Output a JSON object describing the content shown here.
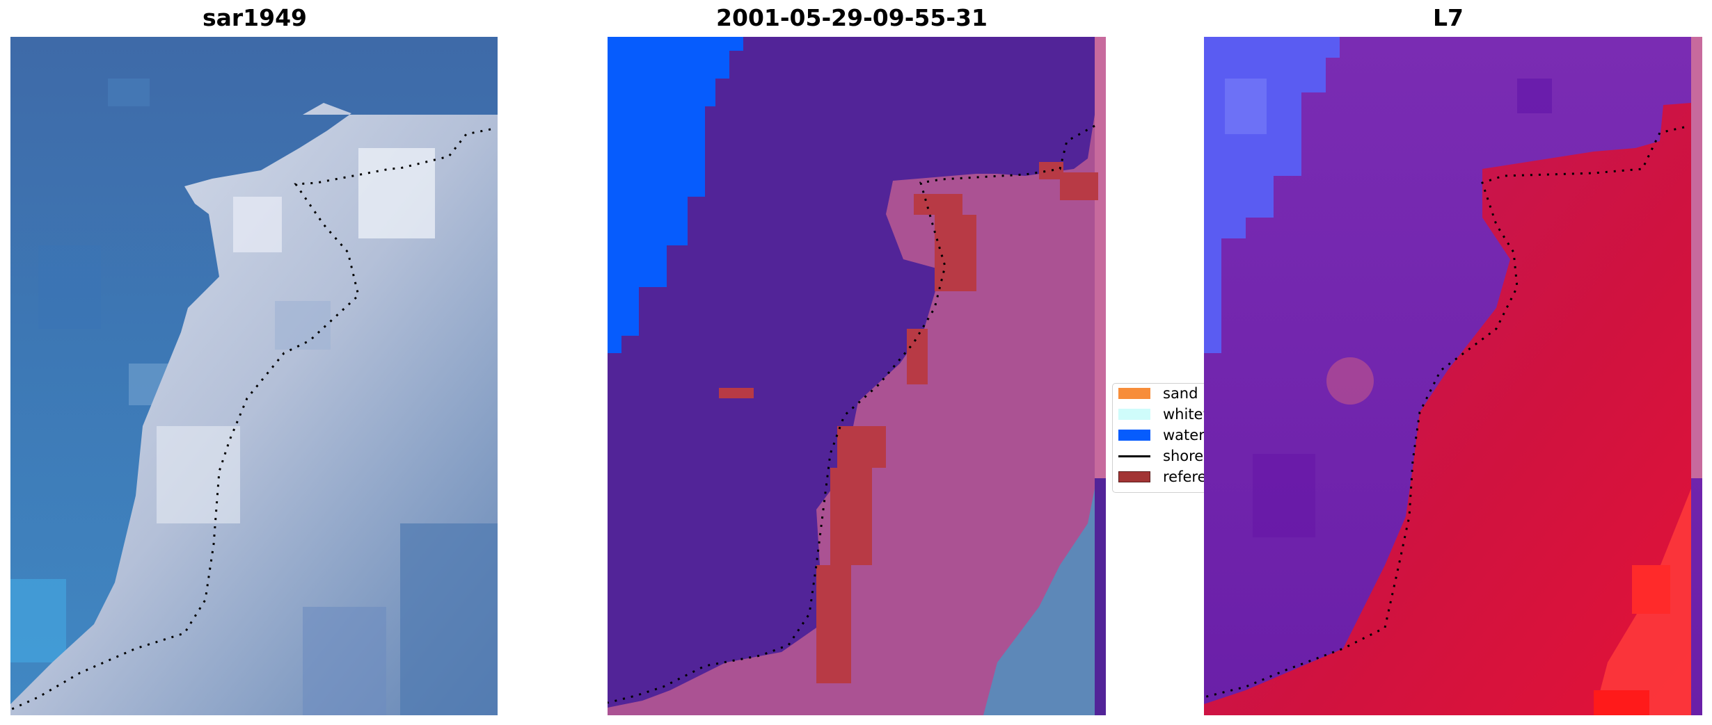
{
  "panels": [
    {
      "title": "sar1949"
    },
    {
      "title": "2001-05-29-09-55-31"
    },
    {
      "title": "L7"
    }
  ],
  "legend": {
    "items": [
      {
        "label": "sand",
        "color": "#f78d3a",
        "kind": "patch"
      },
      {
        "label": "whitewater",
        "color": "#cffcfb",
        "kind": "patch"
      },
      {
        "label": "water",
        "color": "#065cfd",
        "kind": "patch"
      },
      {
        "label": "shoreline",
        "color": "#000000",
        "kind": "line"
      },
      {
        "label": "reference",
        "color": "#a23434",
        "kind": "patch"
      }
    ]
  },
  "colors": {
    "ocean_blue": "#3f76b0",
    "land_white": "#c7cfe3",
    "class_water": "#065cfd",
    "class_sea": "#522498",
    "class_land": "#ab5293",
    "reference_red": "#b83a45",
    "nir_purple": "#6a1fa8",
    "nir_red": "#d01444"
  }
}
